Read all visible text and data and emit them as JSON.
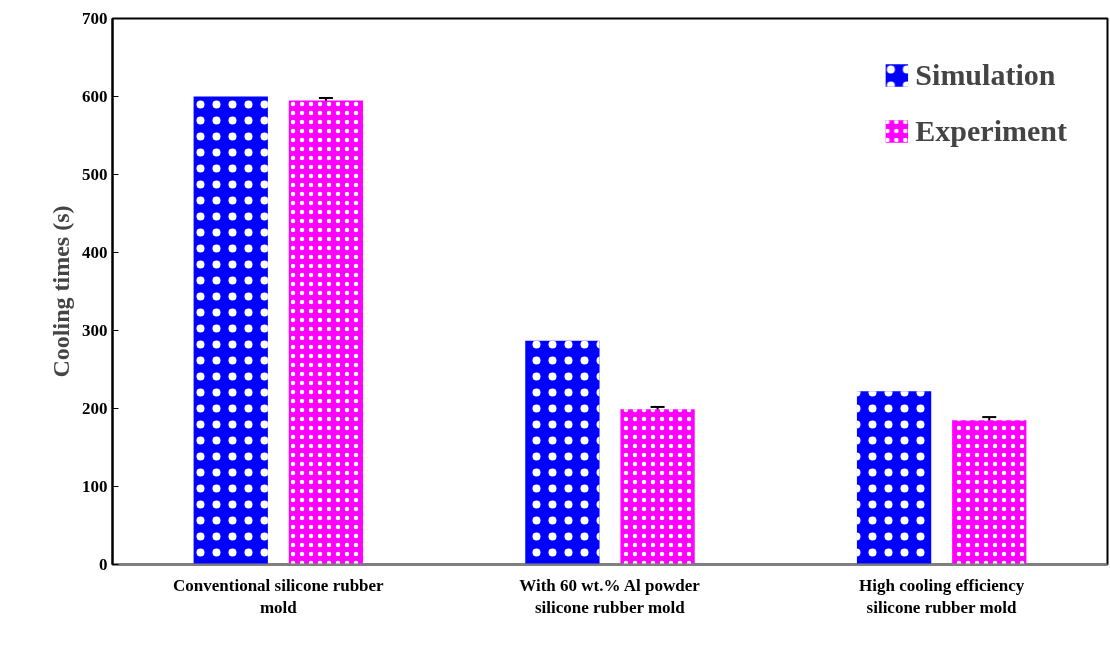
{
  "chart_data": {
    "type": "bar",
    "ylabel": "Cooling times (s)",
    "categories": [
      "Conventional silicone rubber\nmold",
      "With 60 wt.% Al powder\nsilicone rubber mold",
      "High cooling efficiency\nsilicone rubber mold"
    ],
    "series": [
      {
        "name": "Simulation",
        "color": "#0000ff",
        "values": [
          600,
          287,
          222
        ]
      },
      {
        "name": "Experiment",
        "color": "#ff00ff",
        "values": [
          595,
          199,
          185
        ],
        "errors": [
          3,
          3,
          4
        ]
      }
    ],
    "ylim": [
      0,
      700
    ],
    "yticks": [
      0,
      100,
      200,
      300,
      400,
      500,
      600,
      700
    ],
    "grid": false,
    "legend": "top right"
  }
}
